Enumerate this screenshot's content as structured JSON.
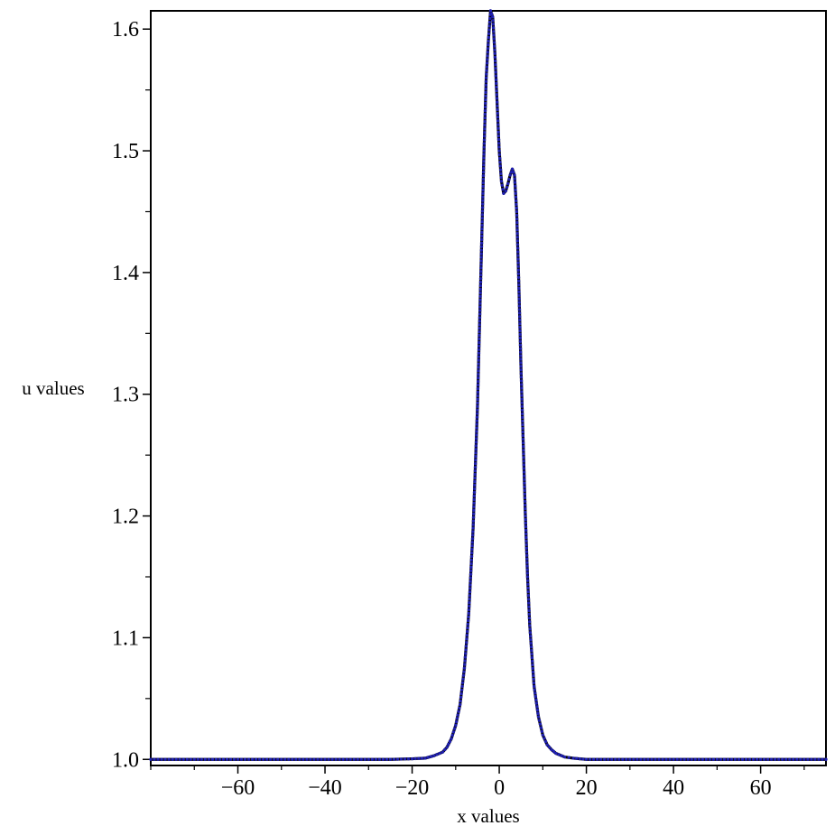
{
  "chart_data": {
    "type": "line",
    "title": "",
    "xlabel": "x values",
    "ylabel": "u values",
    "xlim": [
      -80,
      75
    ],
    "ylim": [
      0.995,
      1.615
    ],
    "xticks": [
      -60,
      -40,
      -20,
      0,
      20,
      40,
      60
    ],
    "xtick_labels": [
      "−60",
      "−40",
      "−20",
      "0",
      "20",
      "40",
      "60"
    ],
    "yticks": [
      1.0,
      1.1,
      1.2,
      1.3,
      1.4,
      1.5,
      1.6
    ],
    "ytick_labels": [
      "1.0",
      "1.1",
      "1.2",
      "1.3",
      "1.4",
      "1.5",
      "1.6"
    ],
    "grid": false,
    "legend": "none",
    "series": [
      {
        "style": "solid",
        "color": "#000000",
        "x": [
          -80,
          -40,
          -25,
          -20,
          -17,
          -15,
          -13,
          -12,
          -11,
          -10,
          -9,
          -8,
          -7,
          -6,
          -5,
          -4.5,
          -4,
          -3.5,
          -3,
          -2.5,
          -2,
          -1.5,
          -1,
          -0.5,
          0,
          0.5,
          1,
          1.5,
          2,
          2.5,
          3,
          3.5,
          4,
          4.5,
          5,
          5.5,
          6,
          6.5,
          7,
          8,
          9,
          10,
          11,
          12,
          13,
          15,
          17,
          20,
          25,
          40,
          75
        ],
        "y": [
          1.0,
          1.0,
          1.0,
          1.0005,
          1.001,
          1.003,
          1.006,
          1.01,
          1.017,
          1.028,
          1.045,
          1.075,
          1.12,
          1.19,
          1.29,
          1.36,
          1.43,
          1.5,
          1.56,
          1.59,
          1.615,
          1.61,
          1.58,
          1.54,
          1.5,
          1.475,
          1.465,
          1.467,
          1.473,
          1.48,
          1.485,
          1.48,
          1.45,
          1.39,
          1.32,
          1.26,
          1.2,
          1.15,
          1.11,
          1.06,
          1.035,
          1.02,
          1.012,
          1.008,
          1.005,
          1.002,
          1.001,
          1.0,
          1.0,
          1.0,
          1.0
        ]
      },
      {
        "style": "markers",
        "color": "#1f1fb0",
        "x": [
          -80,
          -40,
          -25,
          -20,
          -17,
          -15,
          -13,
          -12,
          -11,
          -10,
          -9,
          -8,
          -7,
          -6,
          -5,
          -4.5,
          -4,
          -3.5,
          -3,
          -2.5,
          -2,
          -1.5,
          -1,
          -0.5,
          0,
          0.5,
          1,
          1.5,
          2,
          2.5,
          3,
          3.5,
          4,
          4.5,
          5,
          5.5,
          6,
          6.5,
          7,
          8,
          9,
          10,
          11,
          12,
          13,
          15,
          17,
          20,
          25,
          40,
          75
        ],
        "y": [
          1.0,
          1.0,
          1.0,
          1.0005,
          1.001,
          1.003,
          1.006,
          1.01,
          1.017,
          1.028,
          1.045,
          1.075,
          1.12,
          1.19,
          1.29,
          1.36,
          1.43,
          1.5,
          1.56,
          1.59,
          1.615,
          1.61,
          1.58,
          1.54,
          1.5,
          1.475,
          1.465,
          1.467,
          1.473,
          1.48,
          1.485,
          1.48,
          1.45,
          1.39,
          1.32,
          1.26,
          1.2,
          1.15,
          1.11,
          1.06,
          1.035,
          1.02,
          1.012,
          1.008,
          1.005,
          1.002,
          1.001,
          1.0,
          1.0,
          1.0,
          1.0
        ]
      }
    ]
  }
}
